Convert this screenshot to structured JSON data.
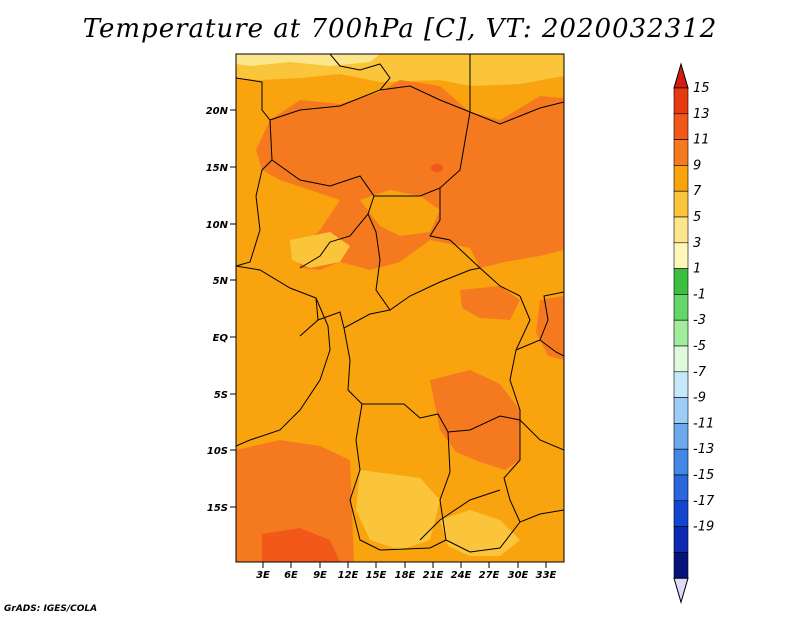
{
  "title": "Temperature at 700hPa [C], VT: 2020032312",
  "credit": "GrADS: IGES/COLA",
  "lat_labels": [
    "20N",
    "15N",
    "10N",
    "5N",
    "EQ",
    "5S",
    "10S",
    "15S"
  ],
  "lon_labels": [
    "3E",
    "6E",
    "9E",
    "12E",
    "15E",
    "18E",
    "21E",
    "24E",
    "27E",
    "30E",
    "33E"
  ],
  "colorbar": {
    "levels": [
      "15",
      "13",
      "11",
      "9",
      "7",
      "5",
      "3",
      "1",
      "-1",
      "-3",
      "-5",
      "-7",
      "-9",
      "-11",
      "-13",
      "-15",
      "-17",
      "-19"
    ],
    "colors": [
      "#e63a0f",
      "#f2581a",
      "#f57a1f",
      "#f9a40e",
      "#fbc53b",
      "#fde58c",
      "#fef7bb",
      "#3bbf3f",
      "#65d66a",
      "#a2ed9d",
      "#def9dc",
      "#c5e8fb",
      "#9ccdf6",
      "#6ba9ec",
      "#4388e6",
      "#2a66dc",
      "#1346cf",
      "#0b2ab0",
      "#07137a"
    ],
    "top_arrow_color": "#d11d0e",
    "bottom_arrow_color": "#dcdcfa"
  }
}
